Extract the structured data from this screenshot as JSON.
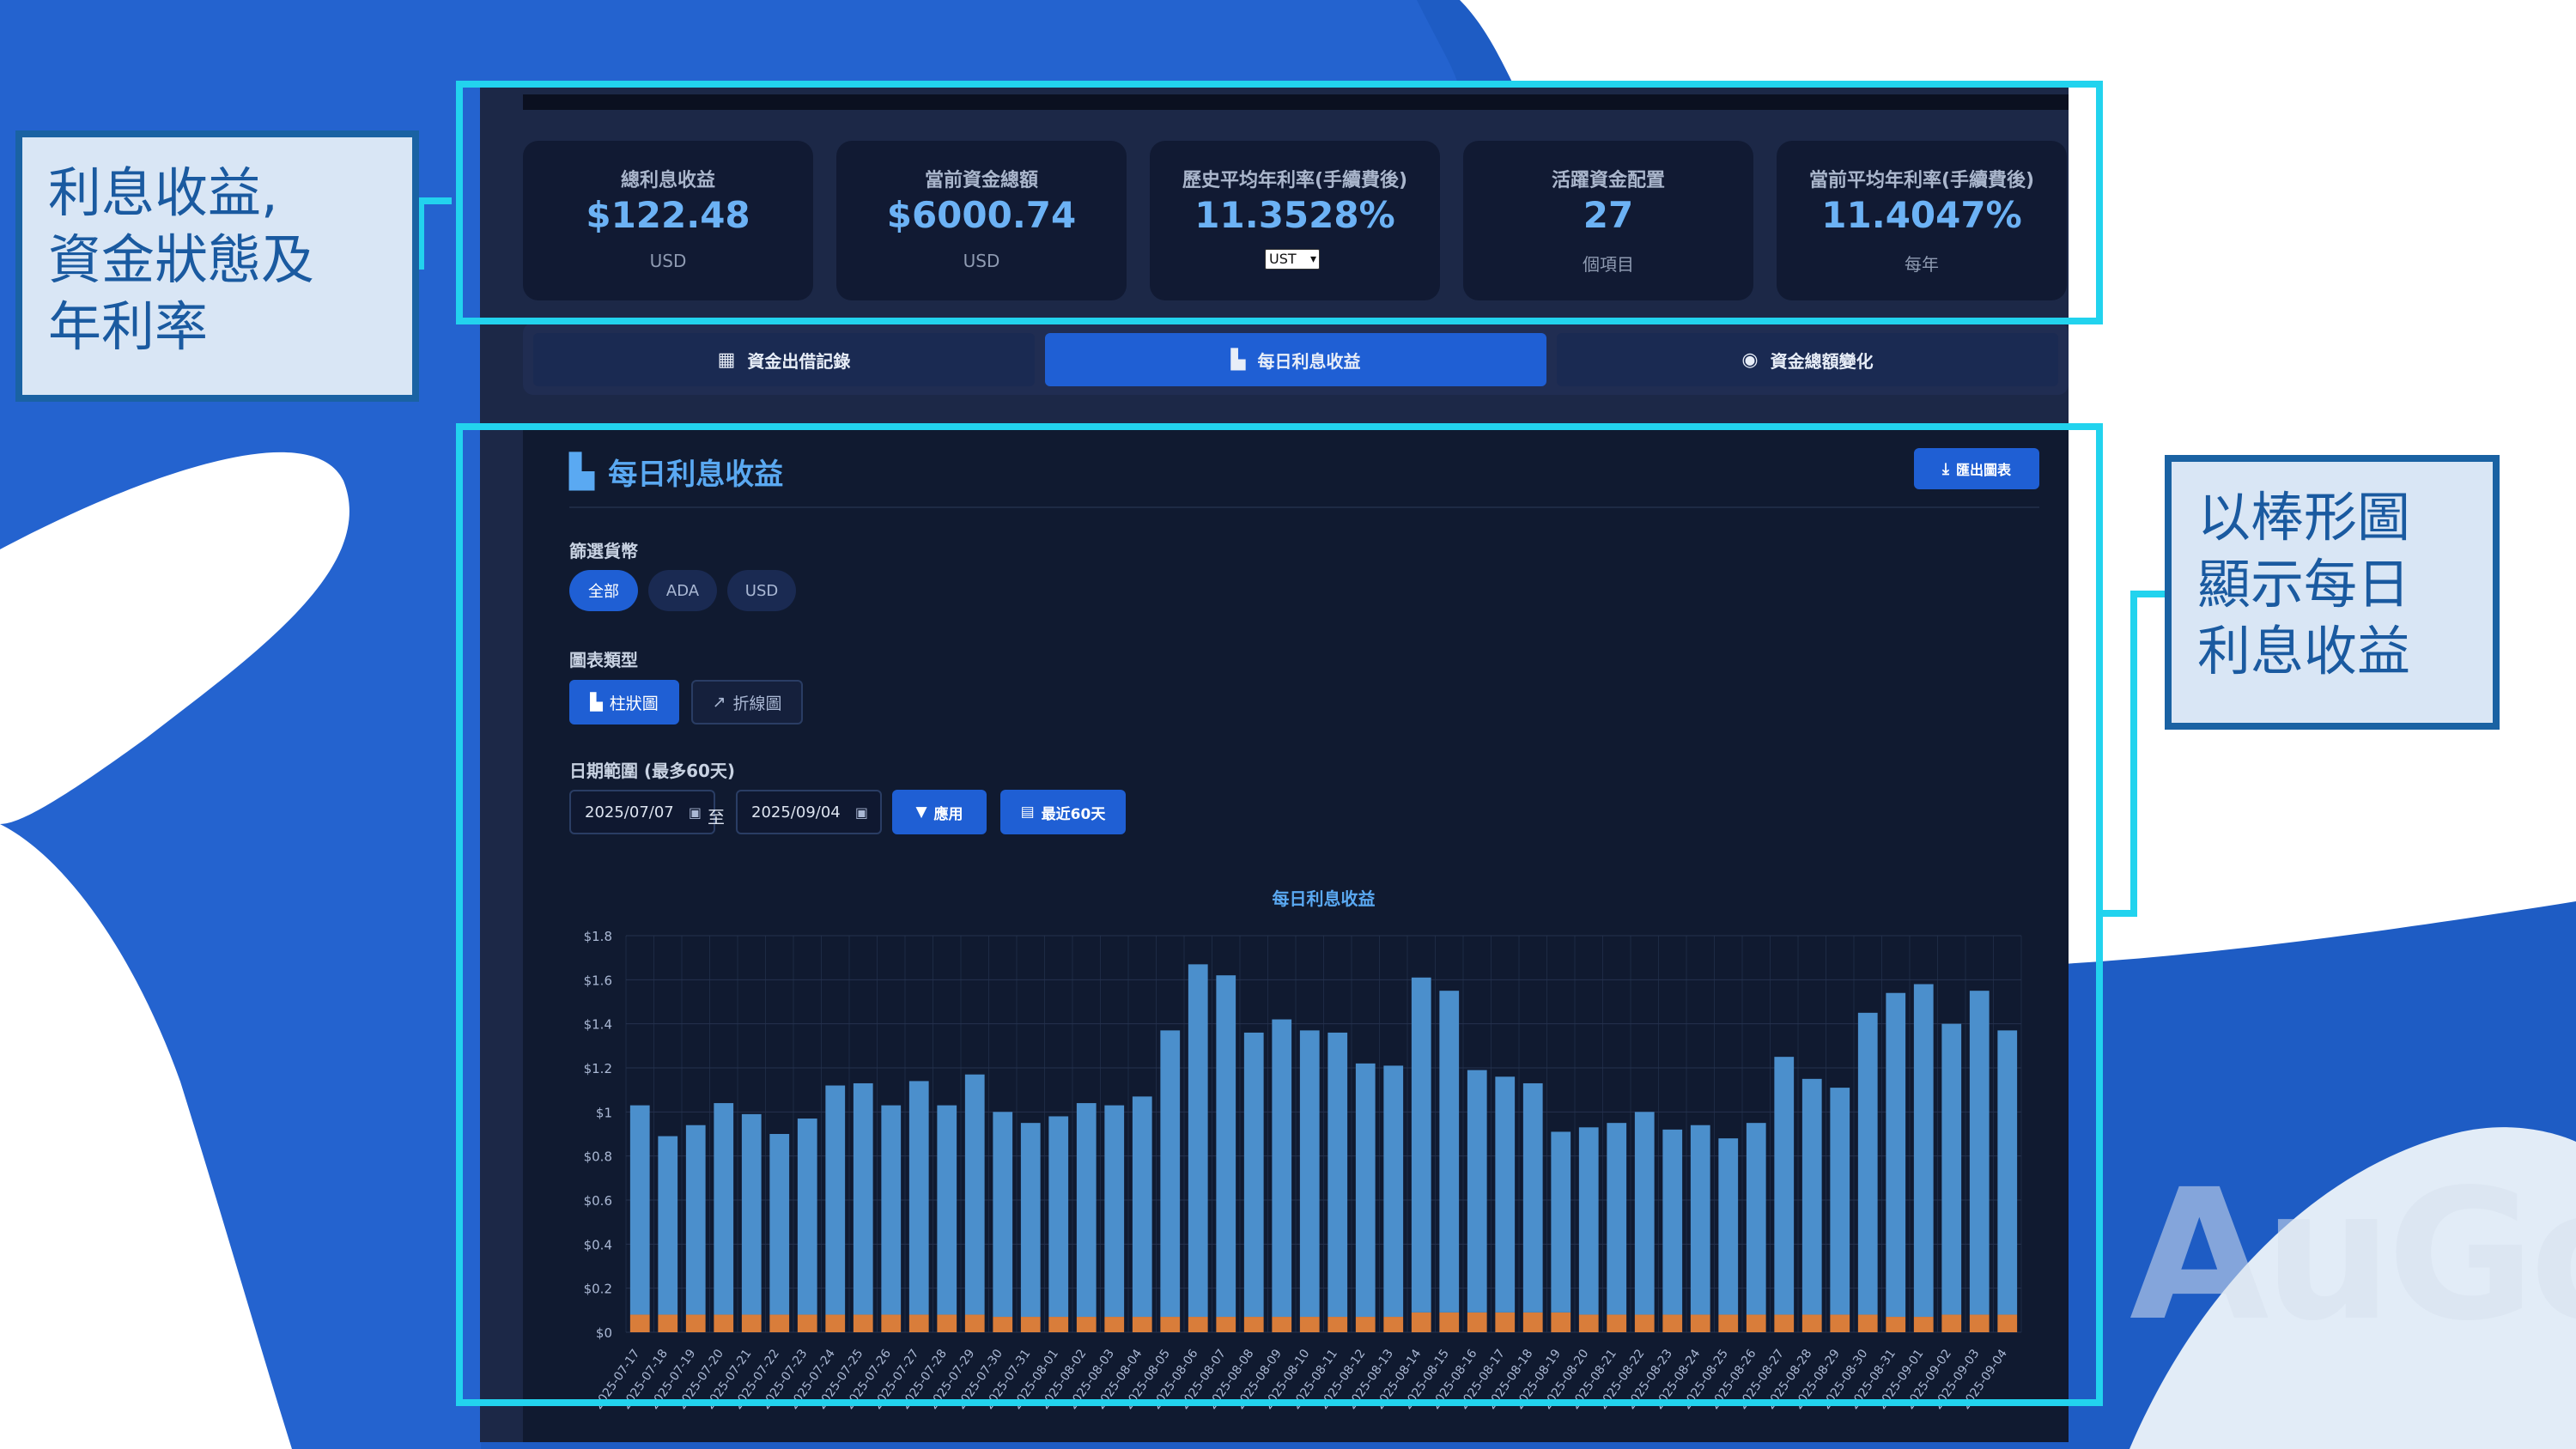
{
  "stats": [
    {
      "label": "總利息收益",
      "value": "$122.48",
      "sub": "USD"
    },
    {
      "label": "當前資金總額",
      "value": "$6000.74",
      "sub": "USD"
    },
    {
      "label": "歷史平均年利率(手續費後)",
      "value": "11.3528%",
      "select": "UST"
    },
    {
      "label": "活躍資金配置",
      "value": "27",
      "sub": "個項目"
    },
    {
      "label": "當前平均年利率(手續費後)",
      "value": "11.4047%",
      "sub": "每年"
    }
  ],
  "tabs": [
    {
      "label": "資金出借記錄",
      "icon": "table-icon",
      "active": false
    },
    {
      "label": "每日利息收益",
      "icon": "bar-chart-icon",
      "active": true
    },
    {
      "label": "資金總額變化",
      "icon": "coins-icon",
      "active": false
    }
  ],
  "panel": {
    "title": "每日利息收益",
    "export_label": "匯出圖表",
    "currency_label": "篩選貨幣",
    "currencies": [
      {
        "label": "全部",
        "active": true
      },
      {
        "label": "ADA",
        "active": false
      },
      {
        "label": "USD",
        "active": false
      }
    ],
    "chart_type_label": "圖表類型",
    "chart_types": [
      {
        "label": "柱狀圖",
        "active": true
      },
      {
        "label": "折線圖",
        "active": false
      }
    ],
    "date_range_label": "日期範圍 (最多60天)",
    "date_from": "2025/07/07",
    "to_label": "至",
    "date_to": "2025/09/04",
    "apply_label": "應用",
    "recent_label": "最近60天"
  },
  "chart_data": {
    "type": "bar",
    "title": "每日利息收益",
    "xlabel": "",
    "ylabel": "",
    "ylim": [
      0,
      1.8
    ],
    "yticks": [
      "$0",
      "$0.2",
      "$0.4",
      "$0.6",
      "$0.8",
      "$1",
      "$1.2",
      "$1.4",
      "$1.6",
      "$1.8"
    ],
    "grid": true,
    "stacked": true,
    "categories": [
      "2025-07-17",
      "2025-07-18",
      "2025-07-19",
      "2025-07-20",
      "2025-07-21",
      "2025-07-22",
      "2025-07-23",
      "2025-07-24",
      "2025-07-25",
      "2025-07-26",
      "2025-07-27",
      "2025-07-28",
      "2025-07-29",
      "2025-07-30",
      "2025-07-31",
      "2025-08-01",
      "2025-08-02",
      "2025-08-03",
      "2025-08-04",
      "2025-08-05",
      "2025-08-06",
      "2025-08-07",
      "2025-08-08",
      "2025-08-09",
      "2025-08-10",
      "2025-08-11",
      "2025-08-12",
      "2025-08-13",
      "2025-08-14",
      "2025-08-15",
      "2025-08-16",
      "2025-08-17",
      "2025-08-18",
      "2025-08-19",
      "2025-08-20",
      "2025-08-21",
      "2025-08-22",
      "2025-08-23",
      "2025-08-24",
      "2025-08-25",
      "2025-08-26",
      "2025-08-27",
      "2025-08-28",
      "2025-08-29",
      "2025-08-30",
      "2025-08-31",
      "2025-09-01",
      "2025-09-02",
      "2025-09-03",
      "2025-09-04"
    ],
    "series": [
      {
        "values": [
          0.08,
          0.08,
          0.08,
          0.08,
          0.08,
          0.08,
          0.08,
          0.08,
          0.08,
          0.08,
          0.08,
          0.08,
          0.08,
          0.07,
          0.07,
          0.07,
          0.07,
          0.07,
          0.07,
          0.07,
          0.07,
          0.07,
          0.07,
          0.07,
          0.07,
          0.07,
          0.07,
          0.07,
          0.09,
          0.09,
          0.09,
          0.09,
          0.09,
          0.09,
          0.08,
          0.08,
          0.08,
          0.08,
          0.08,
          0.08,
          0.08,
          0.08,
          0.08,
          0.08,
          0.08,
          0.07,
          0.07,
          0.08,
          0.08,
          0.08
        ]
      },
      {
        "values": [
          0.95,
          0.81,
          0.86,
          0.96,
          0.91,
          0.82,
          0.89,
          1.04,
          1.05,
          0.95,
          1.06,
          0.95,
          1.09,
          0.93,
          0.88,
          0.91,
          0.97,
          0.96,
          1.0,
          1.3,
          1.6,
          1.55,
          1.29,
          1.35,
          1.3,
          1.29,
          1.15,
          1.14,
          1.52,
          1.46,
          1.1,
          1.07,
          1.04,
          0.82,
          0.85,
          0.87,
          0.92,
          0.84,
          0.86,
          0.8,
          0.87,
          1.17,
          1.07,
          1.03,
          1.37,
          1.47,
          1.51,
          1.32,
          1.47,
          1.29
        ]
      }
    ],
    "colors": [
      "#d97d3a",
      "#4b8fcc"
    ]
  }
}
